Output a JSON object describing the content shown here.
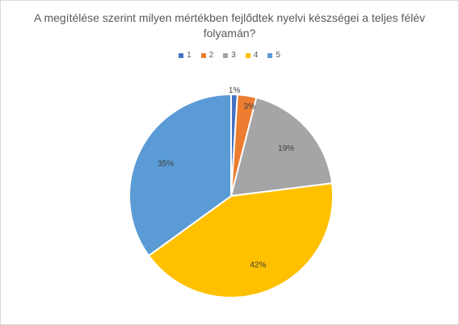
{
  "chart_data": {
    "type": "pie",
    "title": "A megítélése szerint milyen mértékben fejlődtek nyelvi készségei a teljes félév folyamán?",
    "categories": [
      "1",
      "2",
      "3",
      "4",
      "5"
    ],
    "values": [
      1,
      3,
      19,
      42,
      35
    ],
    "data_labels": [
      "1%",
      "3%",
      "19%",
      "42%",
      "35%"
    ],
    "colors": [
      "#4472c4",
      "#ed7d31",
      "#a5a5a5",
      "#ffc000",
      "#5b9bd5"
    ],
    "legend_position": "top"
  }
}
